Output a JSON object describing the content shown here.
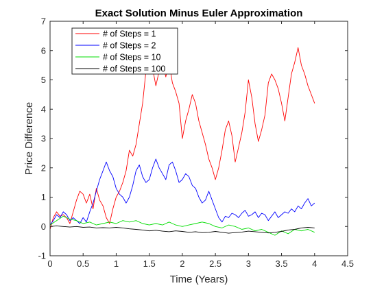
{
  "chart_data": {
    "type": "line",
    "title": "Exact Solution Minus Euler Approximation",
    "xlabel": "Time (Years)",
    "ylabel": "Price Difference",
    "xlim": [
      0,
      4.5
    ],
    "ylim": [
      -1,
      7
    ],
    "xticks": [
      "0",
      "0.5",
      "1",
      "1.5",
      "2",
      "2.5",
      "3",
      "3.5",
      "4",
      "4.5"
    ],
    "yticks": [
      "-1",
      "0",
      "1",
      "2",
      "3",
      "4",
      "5",
      "6",
      "7"
    ],
    "grid": false,
    "legend_position": "top-left",
    "series": [
      {
        "name": "# of Steps = 1",
        "color": "#ff0000",
        "x": [
          0,
          0.05,
          0.1,
          0.15,
          0.2,
          0.25,
          0.3,
          0.35,
          0.4,
          0.45,
          0.5,
          0.55,
          0.6,
          0.65,
          0.7,
          0.75,
          0.8,
          0.85,
          0.9,
          0.95,
          1.0,
          1.05,
          1.1,
          1.15,
          1.2,
          1.25,
          1.3,
          1.35,
          1.4,
          1.45,
          1.5,
          1.55,
          1.6,
          1.65,
          1.7,
          1.75,
          1.8,
          1.85,
          1.9,
          1.95,
          2.0,
          2.05,
          2.1,
          2.15,
          2.2,
          2.25,
          2.3,
          2.35,
          2.4,
          2.45,
          2.5,
          2.55,
          2.6,
          2.65,
          2.7,
          2.75,
          2.8,
          2.85,
          2.9,
          2.95,
          3.0,
          3.05,
          3.1,
          3.15,
          3.2,
          3.25,
          3.3,
          3.35,
          3.4,
          3.45,
          3.5,
          3.55,
          3.6,
          3.65,
          3.7,
          3.75,
          3.8,
          3.85,
          3.9,
          3.95,
          4.0
        ],
        "y": [
          -0.1,
          0.3,
          0.5,
          0.35,
          0.4,
          0.3,
          0.1,
          0.5,
          0.9,
          1.2,
          1.1,
          0.8,
          1.1,
          0.6,
          1.3,
          0.9,
          0.7,
          0.3,
          0.1,
          0.6,
          1.0,
          1.2,
          1.5,
          1.9,
          2.6,
          2.4,
          2.8,
          3.5,
          4.2,
          5.3,
          6.1,
          5.4,
          4.8,
          5.3,
          5.6,
          5.1,
          5.6,
          4.9,
          4.6,
          4.2,
          3.0,
          3.6,
          4.0,
          4.5,
          4.2,
          3.6,
          3.2,
          2.8,
          2.3,
          2.0,
          1.6,
          2.0,
          2.6,
          3.3,
          3.6,
          3.1,
          2.2,
          2.7,
          3.2,
          3.9,
          5.0,
          4.4,
          3.5,
          2.9,
          3.3,
          3.8,
          4.9,
          5.2,
          5.0,
          4.7,
          4.2,
          3.6,
          4.4,
          5.2,
          5.6,
          6.1,
          5.5,
          5.2,
          4.8,
          4.5,
          4.2
        ]
      },
      {
        "name": "# of Steps = 2",
        "color": "#0000ff",
        "x": [
          0,
          0.05,
          0.1,
          0.15,
          0.2,
          0.25,
          0.3,
          0.35,
          0.4,
          0.45,
          0.5,
          0.55,
          0.6,
          0.65,
          0.7,
          0.75,
          0.8,
          0.85,
          0.9,
          0.95,
          1.0,
          1.05,
          1.1,
          1.15,
          1.2,
          1.25,
          1.3,
          1.35,
          1.4,
          1.45,
          1.5,
          1.55,
          1.6,
          1.65,
          1.7,
          1.75,
          1.8,
          1.85,
          1.9,
          1.95,
          2.0,
          2.05,
          2.1,
          2.15,
          2.2,
          2.25,
          2.3,
          2.35,
          2.4,
          2.45,
          2.5,
          2.55,
          2.6,
          2.65,
          2.7,
          2.75,
          2.8,
          2.85,
          2.9,
          2.95,
          3.0,
          3.05,
          3.1,
          3.15,
          3.2,
          3.25,
          3.3,
          3.35,
          3.4,
          3.45,
          3.5,
          3.55,
          3.6,
          3.65,
          3.7,
          3.75,
          3.8,
          3.85,
          3.9,
          3.95,
          4.0
        ],
        "y": [
          0.05,
          0.2,
          0.4,
          0.3,
          0.5,
          0.4,
          0.2,
          0.3,
          0.2,
          0.1,
          0.3,
          0.15,
          0.5,
          0.8,
          1.2,
          1.6,
          1.9,
          2.2,
          1.9,
          1.7,
          1.3,
          1.1,
          1.0,
          0.8,
          1.0,
          1.4,
          1.9,
          2.1,
          1.7,
          1.5,
          1.6,
          2.0,
          2.3,
          2.0,
          1.8,
          1.6,
          2.1,
          2.2,
          1.9,
          1.5,
          1.6,
          1.8,
          1.7,
          1.4,
          1.3,
          1.0,
          0.8,
          0.9,
          1.2,
          0.9,
          0.6,
          0.3,
          0.15,
          0.35,
          0.3,
          0.45,
          0.4,
          0.3,
          0.45,
          0.55,
          0.35,
          0.4,
          0.5,
          0.3,
          0.45,
          0.4,
          0.2,
          0.35,
          0.5,
          0.3,
          0.4,
          0.5,
          0.45,
          0.6,
          0.5,
          0.7,
          0.6,
          0.8,
          0.95,
          0.7,
          0.8
        ]
      },
      {
        "name": "# of Steps = 10",
        "color": "#00dd00",
        "x": [
          0,
          0.1,
          0.2,
          0.3,
          0.4,
          0.5,
          0.6,
          0.7,
          0.8,
          0.9,
          1.0,
          1.1,
          1.2,
          1.3,
          1.4,
          1.5,
          1.6,
          1.7,
          1.8,
          1.9,
          2.0,
          2.1,
          2.2,
          2.3,
          2.4,
          2.5,
          2.6,
          2.7,
          2.8,
          2.9,
          3.0,
          3.1,
          3.2,
          3.3,
          3.4,
          3.5,
          3.6,
          3.7,
          3.8,
          3.9,
          4.0
        ],
        "y": [
          0.05,
          0.2,
          0.35,
          0.25,
          0.2,
          0.1,
          0.15,
          0.05,
          0.1,
          0.15,
          0.1,
          0.2,
          0.15,
          0.2,
          0.1,
          0.05,
          0.1,
          0.05,
          0.15,
          0.05,
          0.0,
          0.05,
          0.1,
          0.15,
          0.1,
          0.0,
          -0.05,
          0.05,
          0.0,
          -0.1,
          -0.05,
          -0.15,
          -0.1,
          -0.2,
          -0.3,
          -0.15,
          -0.25,
          -0.1,
          -0.15,
          -0.1,
          -0.2
        ]
      },
      {
        "name": "# of Steps = 100",
        "color": "#000000",
        "x": [
          0,
          0.1,
          0.2,
          0.3,
          0.4,
          0.5,
          0.6,
          0.7,
          0.8,
          0.9,
          1.0,
          1.1,
          1.2,
          1.3,
          1.4,
          1.5,
          1.6,
          1.7,
          1.8,
          1.9,
          2.0,
          2.1,
          2.2,
          2.3,
          2.4,
          2.5,
          2.6,
          2.7,
          2.8,
          2.9,
          3.0,
          3.1,
          3.2,
          3.3,
          3.4,
          3.5,
          3.6,
          3.7,
          3.8,
          3.9,
          4.0
        ],
        "y": [
          0.0,
          0.02,
          0.0,
          -0.02,
          0.0,
          -0.03,
          -0.02,
          -0.05,
          -0.04,
          -0.05,
          -0.03,
          -0.05,
          -0.08,
          -0.1,
          -0.12,
          -0.15,
          -0.13,
          -0.16,
          -0.18,
          -0.15,
          -0.17,
          -0.2,
          -0.18,
          -0.21,
          -0.2,
          -0.17,
          -0.2,
          -0.23,
          -0.21,
          -0.19,
          -0.16,
          -0.18,
          -0.2,
          -0.22,
          -0.2,
          -0.17,
          -0.12,
          -0.1,
          -0.05,
          -0.03,
          -0.05
        ]
      }
    ]
  }
}
